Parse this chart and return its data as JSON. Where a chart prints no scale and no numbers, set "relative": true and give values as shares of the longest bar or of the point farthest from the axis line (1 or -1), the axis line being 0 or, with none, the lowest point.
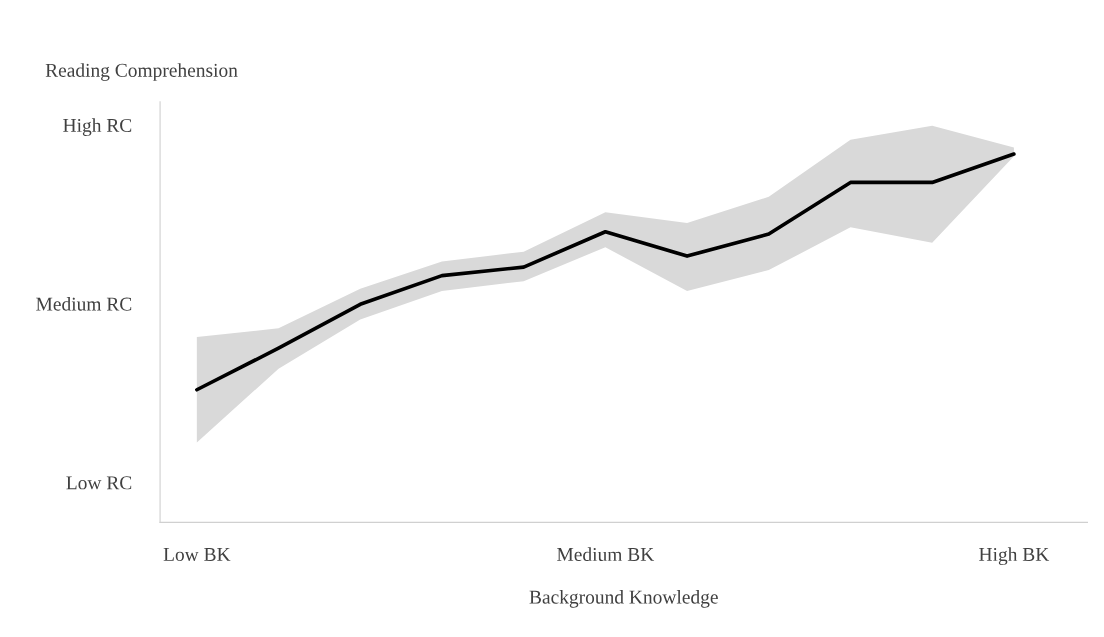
{
  "chart_data": {
    "type": "line",
    "relative": true,
    "xlabel": "Background Knowledge",
    "ylabel": "Reading Comprehension",
    "categories": [
      "Low BK",
      null,
      null,
      null,
      null,
      "Medium BK",
      null,
      null,
      null,
      null,
      "High BK"
    ],
    "series": [
      {
        "color": "#000000",
        "values": [
          0.36,
          0.473,
          0.592,
          0.67,
          0.693,
          0.789,
          0.723,
          0.783,
          0.923,
          0.923,
          1.0
        ],
        "lower": [
          0.217,
          0.417,
          0.551,
          0.628,
          0.655,
          0.747,
          0.628,
          0.685,
          0.801,
          0.759,
          0.994
        ],
        "upper": [
          0.503,
          0.527,
          0.634,
          0.708,
          0.735,
          0.842,
          0.813,
          0.884,
          1.039,
          1.077,
          1.018
        ]
      }
    ],
    "annotations": [
      "Low RC",
      "Medium RC",
      "High RC"
    ],
    "grid": false,
    "legend": false,
    "marker": "none",
    "line_style": "solid"
  }
}
